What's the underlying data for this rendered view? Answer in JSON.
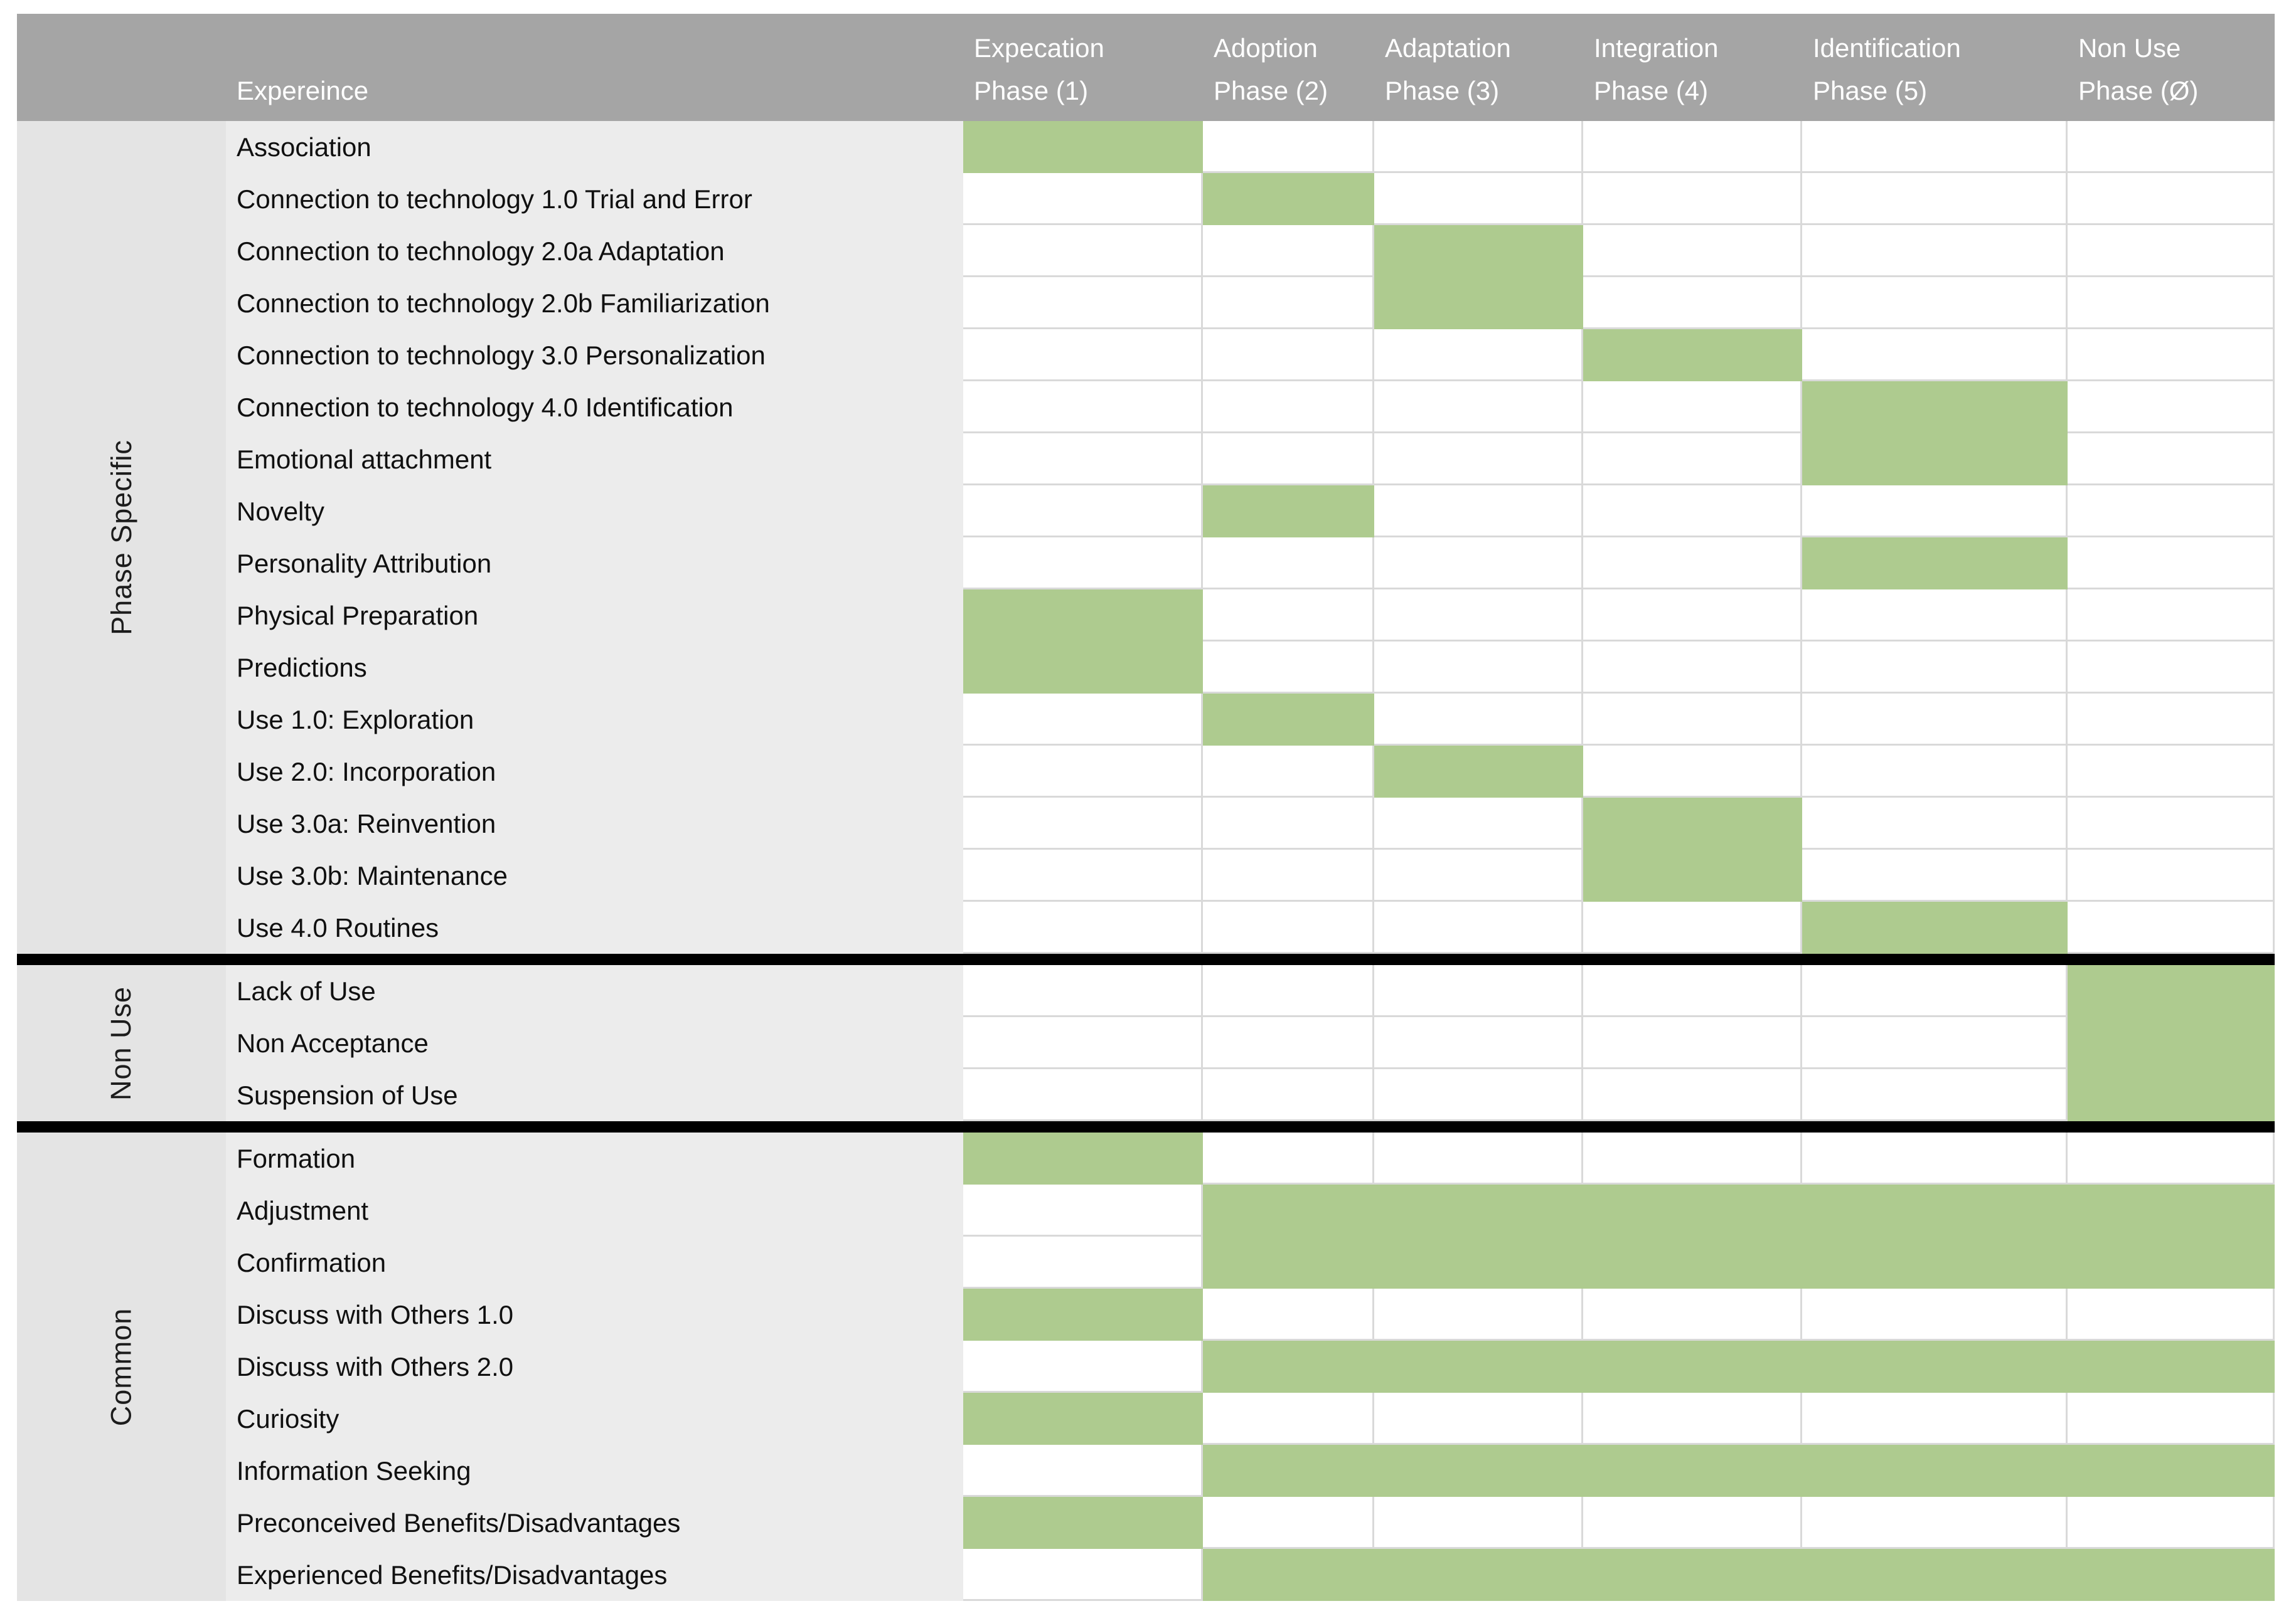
{
  "chart_data": {
    "type": "heatmap",
    "description": "Matrix mapping user experiences to technology acceptance phases; a filled green cell means the experience occurs in that phase.",
    "corner_label": "Expereince",
    "columns": [
      {
        "title": "Expecation",
        "subtitle": "Phase (1)"
      },
      {
        "title": "Adoption",
        "subtitle": "Phase (2)"
      },
      {
        "title": "Adaptation",
        "subtitle": "Phase (3)"
      },
      {
        "title": "Integration",
        "subtitle": "Phase (4)"
      },
      {
        "title": "Identification",
        "subtitle": "Phase (5)"
      },
      {
        "title": "Non Use",
        "subtitle": "Phase (Ø)"
      }
    ],
    "sections": [
      {
        "label": "Phase Specific",
        "rows": [
          {
            "label": "Association",
            "phases": [
              1
            ]
          },
          {
            "label": "Connection to technology 1.0 Trial and Error",
            "phases": [
              2
            ]
          },
          {
            "label": "Connection to technology 2.0a Adaptation",
            "phases": [
              3
            ]
          },
          {
            "label": "Connection to technology 2.0b Familiarization",
            "phases": [
              3
            ]
          },
          {
            "label": "Connection to technology 3.0 Personalization",
            "phases": [
              4
            ]
          },
          {
            "label": "Connection to technology 4.0 Identification",
            "phases": [
              5
            ]
          },
          {
            "label": "Emotional attachment",
            "phases": [
              5
            ]
          },
          {
            "label": "Novelty",
            "phases": [
              2
            ]
          },
          {
            "label": "Personality Attribution",
            "phases": [
              5
            ]
          },
          {
            "label": "Physical Preparation",
            "phases": [
              1
            ]
          },
          {
            "label": "Predictions",
            "phases": [
              1
            ]
          },
          {
            "label": "Use 1.0: Exploration",
            "phases": [
              2
            ]
          },
          {
            "label": "Use 2.0: Incorporation",
            "phases": [
              3
            ]
          },
          {
            "label": "Use 3.0a: Reinvention",
            "phases": [
              4
            ]
          },
          {
            "label": "Use 3.0b: Maintenance",
            "phases": [
              4
            ]
          },
          {
            "label": "Use 4.0 Routines",
            "phases": [
              5
            ]
          }
        ]
      },
      {
        "label": "Non Use",
        "rows": [
          {
            "label": "Lack of Use",
            "phases": [
              6
            ]
          },
          {
            "label": "Non Acceptance",
            "phases": [
              6
            ]
          },
          {
            "label": "Suspension of Use",
            "phases": [
              6
            ]
          }
        ]
      },
      {
        "label": "Common",
        "rows": [
          {
            "label": "Formation",
            "phases": [
              1
            ]
          },
          {
            "label": "Adjustment",
            "phases": [
              2,
              3,
              4,
              5,
              6
            ]
          },
          {
            "label": "Confirmation",
            "phases": [
              2,
              3,
              4,
              5,
              6
            ]
          },
          {
            "label": "Discuss with Others 1.0",
            "phases": [
              1
            ]
          },
          {
            "label": "Discuss with Others 2.0",
            "phases": [
              2,
              3,
              4,
              5,
              6
            ]
          },
          {
            "label": "Curiosity",
            "phases": [
              1
            ]
          },
          {
            "label": "Information Seeking",
            "phases": [
              2,
              3,
              4,
              5,
              6
            ]
          },
          {
            "label": "Preconceived Benefits/Disadvantages",
            "phases": [
              1
            ]
          },
          {
            "label": "Experienced Benefits/Disadvantages",
            "phases": [
              2,
              3,
              4,
              5,
              6
            ]
          }
        ]
      }
    ],
    "colors": {
      "filled_cell": "#aecb8f",
      "header_bg": "#a5a5a5",
      "header_text": "#ffffff",
      "row_label_bg": "#ececec",
      "group_label_bg": "#e4e4e4",
      "gridline": "#d9d9d9",
      "section_divider": "#000000"
    }
  }
}
